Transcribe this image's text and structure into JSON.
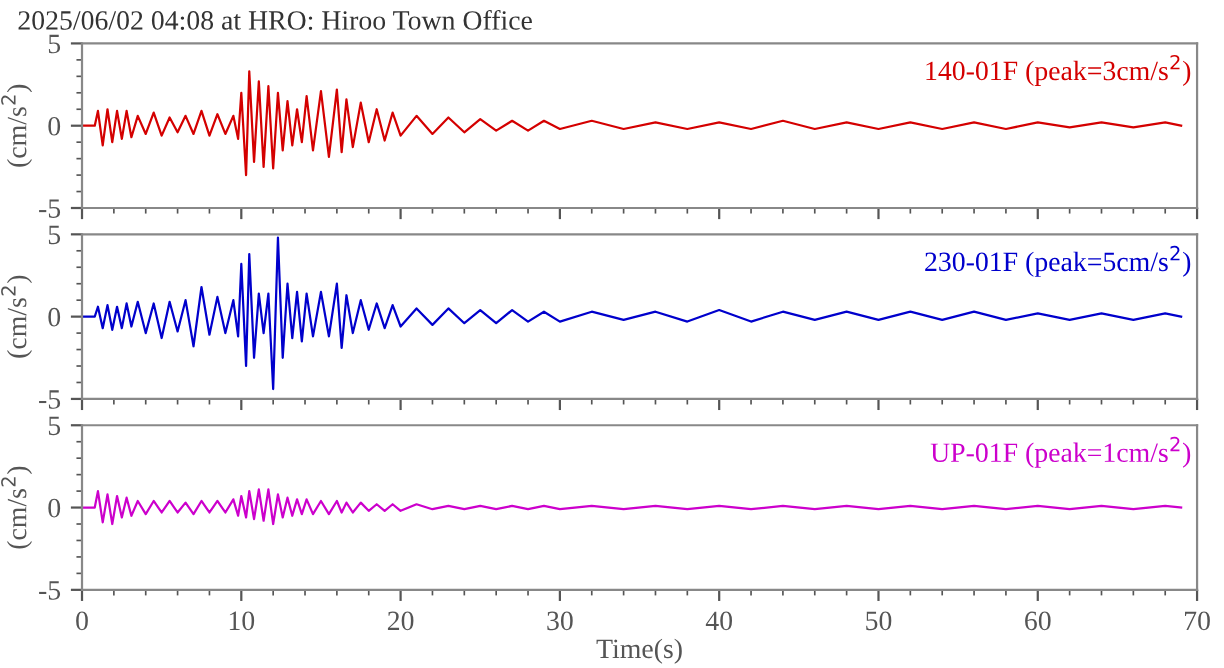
{
  "chart_data": [
    {
      "type": "line",
      "title": "2025/06/02 04:08 at HRO: Hiroo Town Office",
      "ylabel": "(cm/s$^{2}$)",
      "annotations": [
        "140-01F (peak=3cm/s$^{2}$)"
      ],
      "tick_labels": "y",
      "xlim": [
        0,
        70
      ],
      "xticks": [
        0,
        10,
        20,
        30,
        40,
        50,
        60,
        70
      ],
      "ylim": [
        -5,
        5
      ],
      "yticks": [
        -5,
        0,
        5
      ],
      "x": [
        0,
        0.8,
        1.0,
        1.3,
        1.6,
        1.9,
        2.2,
        2.5,
        2.8,
        3.1,
        3.5,
        4,
        4.5,
        5,
        5.5,
        6,
        6.5,
        7,
        7.5,
        8,
        8.5,
        9,
        9.5,
        9.8,
        10.0,
        10.3,
        10.5,
        10.8,
        11.1,
        11.4,
        11.7,
        12,
        12.3,
        12.6,
        12.9,
        13.2,
        13.5,
        13.8,
        14.1,
        14.5,
        15,
        15.5,
        16,
        16.3,
        16.6,
        17,
        17.5,
        18,
        18.5,
        19,
        19.5,
        20,
        21,
        22,
        23,
        24,
        25,
        26,
        27,
        28,
        29,
        30,
        32,
        34,
        36,
        38,
        40,
        42,
        44,
        46,
        48,
        50,
        52,
        54,
        56,
        58,
        60,
        62,
        64,
        66,
        68,
        69
      ],
      "series": [
        {
          "color": "#d40000",
          "values": [
            0,
            0,
            0.9,
            -1.2,
            1.0,
            -1.0,
            0.9,
            -0.8,
            0.9,
            -0.7,
            0.6,
            -0.5,
            0.8,
            -0.6,
            0.5,
            -0.4,
            0.6,
            -0.5,
            0.9,
            -0.6,
            0.7,
            -0.5,
            0.6,
            -0.8,
            2.0,
            -3.0,
            3.3,
            -2.2,
            2.7,
            -2.5,
            2.4,
            -2.6,
            2.0,
            -1.5,
            1.5,
            -1.2,
            1.0,
            -1.0,
            1.8,
            -1.5,
            2.1,
            -1.9,
            2.2,
            -1.6,
            1.6,
            -1.3,
            1.4,
            -1.0,
            1.0,
            -0.9,
            0.8,
            -0.6,
            0.6,
            -0.5,
            0.5,
            -0.4,
            0.4,
            -0.3,
            0.3,
            -0.3,
            0.3,
            -0.2,
            0.3,
            -0.2,
            0.2,
            -0.2,
            0.2,
            -0.2,
            0.3,
            -0.2,
            0.2,
            -0.2,
            0.2,
            -0.2,
            0.2,
            -0.2,
            0.2,
            -0.1,
            0.2,
            -0.1,
            0.2,
            0
          ]
        }
      ]
    },
    {
      "type": "line",
      "ylabel": "(cm/s$^{2}$)",
      "annotations": [
        "230-01F (peak=5cm/s$^{2}$)"
      ],
      "tick_labels": "y",
      "xlim": [
        0,
        70
      ],
      "xticks": [
        0,
        10,
        20,
        30,
        40,
        50,
        60,
        70
      ],
      "ylim": [
        -5,
        5
      ],
      "yticks": [
        -5,
        0,
        5
      ],
      "x": [
        0,
        0.8,
        1.0,
        1.3,
        1.6,
        1.9,
        2.2,
        2.5,
        2.8,
        3.1,
        3.5,
        4,
        4.5,
        5,
        5.5,
        6,
        6.5,
        7,
        7.5,
        8,
        8.5,
        9,
        9.5,
        9.8,
        10.0,
        10.3,
        10.5,
        10.8,
        11.1,
        11.4,
        11.7,
        12,
        12.3,
        12.6,
        12.9,
        13.2,
        13.5,
        13.8,
        14.1,
        14.5,
        15,
        15.5,
        16,
        16.3,
        16.6,
        17,
        17.5,
        18,
        18.5,
        19,
        19.5,
        20,
        21,
        22,
        23,
        24,
        25,
        26,
        27,
        28,
        29,
        30,
        32,
        34,
        36,
        38,
        40,
        42,
        44,
        46,
        48,
        50,
        52,
        54,
        56,
        58,
        60,
        62,
        64,
        66,
        68,
        69
      ],
      "series": [
        {
          "color": "#0000cc",
          "values": [
            0,
            0,
            0.6,
            -0.7,
            0.7,
            -0.8,
            0.6,
            -0.7,
            0.8,
            -0.6,
            0.9,
            -1.0,
            0.8,
            -1.3,
            0.9,
            -0.9,
            1.0,
            -1.8,
            1.8,
            -1.1,
            1.2,
            -1.0,
            1.0,
            -1.2,
            3.2,
            -3.0,
            3.8,
            -2.5,
            1.4,
            -1.0,
            1.4,
            -4.4,
            4.8,
            -2.5,
            2.0,
            -1.3,
            1.5,
            -1.5,
            1.4,
            -1.2,
            1.5,
            -1.2,
            2.0,
            -1.9,
            1.3,
            -1.0,
            1.0,
            -0.8,
            0.8,
            -0.7,
            0.7,
            -0.6,
            0.5,
            -0.5,
            0.5,
            -0.4,
            0.4,
            -0.4,
            0.4,
            -0.3,
            0.3,
            -0.3,
            0.3,
            -0.2,
            0.3,
            -0.3,
            0.4,
            -0.3,
            0.3,
            -0.2,
            0.3,
            -0.2,
            0.3,
            -0.2,
            0.3,
            -0.2,
            0.2,
            -0.2,
            0.2,
            -0.2,
            0.2,
            0
          ]
        }
      ]
    },
    {
      "type": "line",
      "ylabel": "(cm/s$^{2}$)",
      "xlabel": "Time(s)",
      "annotations": [
        "UP-01F (peak=1cm/s$^{2}$)"
      ],
      "xlim": [
        0,
        70
      ],
      "xticks": [
        0,
        10,
        20,
        30,
        40,
        50,
        60,
        70
      ],
      "ylim": [
        -5,
        5
      ],
      "yticks": [
        -5,
        0,
        5
      ],
      "x": [
        0,
        0.8,
        1.0,
        1.3,
        1.6,
        1.9,
        2.2,
        2.5,
        2.8,
        3.1,
        3.5,
        4,
        4.5,
        5,
        5.5,
        6,
        6.5,
        7,
        7.5,
        8,
        8.5,
        9,
        9.5,
        9.8,
        10.0,
        10.3,
        10.5,
        10.8,
        11.1,
        11.4,
        11.7,
        12,
        12.3,
        12.6,
        12.9,
        13.2,
        13.5,
        13.8,
        14.1,
        14.5,
        15,
        15.5,
        16,
        16.3,
        16.6,
        17,
        17.5,
        18,
        18.5,
        19,
        19.5,
        20,
        21,
        22,
        23,
        24,
        25,
        26,
        27,
        28,
        29,
        30,
        32,
        34,
        36,
        38,
        40,
        42,
        44,
        46,
        48,
        50,
        52,
        54,
        56,
        58,
        60,
        62,
        64,
        66,
        68,
        69
      ],
      "series": [
        {
          "color": "#cc00cc",
          "values": [
            0,
            0,
            1.0,
            -0.9,
            0.8,
            -1.0,
            0.7,
            -0.6,
            0.6,
            -0.5,
            0.4,
            -0.4,
            0.4,
            -0.3,
            0.4,
            -0.3,
            0.3,
            -0.4,
            0.4,
            -0.3,
            0.4,
            -0.3,
            0.5,
            -0.5,
            0.7,
            -0.6,
            1.0,
            -0.7,
            1.1,
            -0.8,
            1.1,
            -1.0,
            0.8,
            -0.6,
            0.6,
            -0.5,
            0.5,
            -0.4,
            0.5,
            -0.4,
            0.4,
            -0.4,
            0.4,
            -0.3,
            0.3,
            -0.3,
            0.3,
            -0.2,
            0.2,
            -0.2,
            0.2,
            -0.2,
            0.2,
            -0.1,
            0.1,
            -0.1,
            0.1,
            -0.1,
            0.1,
            -0.1,
            0.1,
            -0.1,
            0.1,
            -0.1,
            0.1,
            -0.1,
            0.1,
            -0.1,
            0.1,
            -0.1,
            0.1,
            -0.1,
            0.1,
            -0.1,
            0.1,
            -0.1,
            0.1,
            -0.1,
            0.1,
            -0.1,
            0.1,
            0
          ]
        }
      ]
    }
  ]
}
